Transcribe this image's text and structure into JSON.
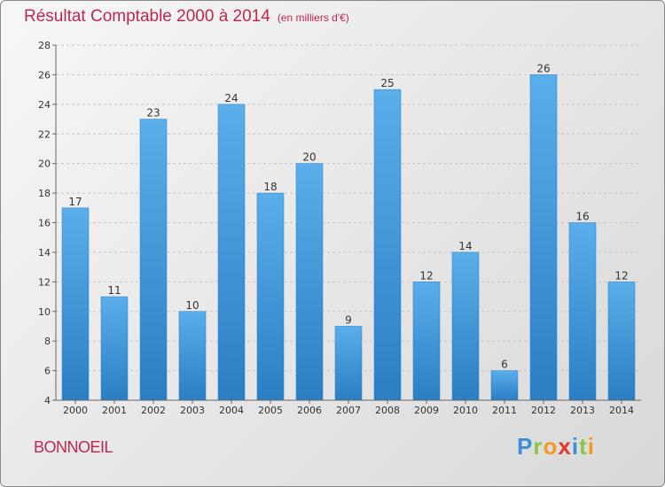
{
  "header": {
    "title": "Résultat Comptable 2000 à 2014",
    "subtitle": "(en milliers d'€)"
  },
  "footer": {
    "commune": "BONNOEIL",
    "logo_letters": [
      "P",
      "r",
      "o",
      "x",
      "i",
      "t",
      "i"
    ]
  },
  "colors": {
    "title": "#c0274f",
    "bar_light": "#5aaeea",
    "bar_dark": "#2a7fc4"
  },
  "chart_data": {
    "type": "bar",
    "title": "Résultat Comptable 2000 à 2014",
    "subtitle": "(en milliers d'€)",
    "xlabel": "",
    "ylabel": "",
    "categories": [
      "2000",
      "2001",
      "2002",
      "2003",
      "2004",
      "2005",
      "2006",
      "2007",
      "2008",
      "2009",
      "2010",
      "2011",
      "2012",
      "2013",
      "2014"
    ],
    "values": [
      17,
      11,
      23,
      10,
      24,
      18,
      20,
      9,
      25,
      12,
      14,
      6,
      26,
      16,
      12
    ],
    "ylim": [
      4,
      28
    ],
    "yticks": [
      4,
      6,
      8,
      10,
      12,
      14,
      16,
      18,
      20,
      22,
      24,
      26,
      28
    ],
    "grid": true
  }
}
